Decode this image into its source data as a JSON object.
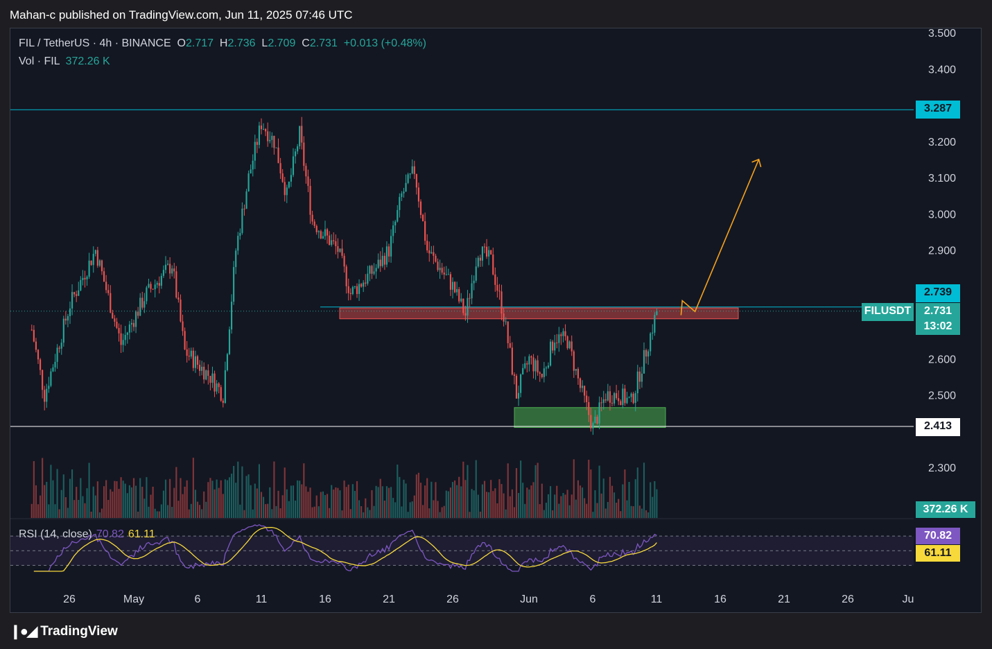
{
  "header": {
    "published": "Mahan-c published on TradingView.com, Jun 11, 2025 07:46 UTC"
  },
  "legend": {
    "symbol": "FIL / TetherUS · 4h · BINANCE",
    "o_label": "O",
    "o_value": "2.717",
    "h_label": "H",
    "h_value": "2.736",
    "l_label": "L",
    "l_value": "2.709",
    "c_label": "C",
    "c_value": "2.731",
    "change": "+0.013 (+0.48%)",
    "volume_label": "Vol · FIL",
    "volume_value": "372.26 K"
  },
  "rsi_legend": {
    "label": "RSI (14, close)",
    "rsi_value": "70.82",
    "ma_value": "61.11"
  },
  "price_tags": {
    "top_level": "3.287",
    "high_tag": "2.739",
    "symbol_tag": "FILUSDT",
    "price": "2.731",
    "countdown": "13:02",
    "low_level": "2.413",
    "volume": "372.26 K",
    "rsi": "70.82",
    "rsi_ma": "61.11"
  },
  "footer": {
    "brand": "TradingView"
  },
  "colors": {
    "up": "#26a69a",
    "down": "#ef5350",
    "accent": "#00bcd4",
    "rsi": "#7e57c2",
    "rsi_ma": "#f7d93b",
    "arrow": "#f7a21b"
  },
  "chart_data": {
    "type": "candlestick",
    "symbol": "FILUSDT",
    "timeframe": "4h",
    "ylim": [
      2.2,
      3.5
    ],
    "y_ticks": [
      "3.500",
      "3.400",
      "3.200",
      "3.100",
      "3.000",
      "2.900",
      "2.600",
      "2.500",
      "2.300"
    ],
    "x_ticks": [
      "26",
      "May",
      "6",
      "11",
      "16",
      "21",
      "26",
      "Jun",
      "6",
      "11",
      "16",
      "21",
      "26",
      "Ju"
    ],
    "levels": {
      "resistance_line": 3.287,
      "support_line": 2.413,
      "current_price": 2.731
    },
    "zones": [
      {
        "name": "resistance zone",
        "from": 2.71,
        "to": 2.74
      },
      {
        "name": "support zone",
        "from": 2.41,
        "to": 2.465
      }
    ],
    "price_path_approx": [
      [
        "Apr 23",
        2.68
      ],
      [
        "Apr 24",
        2.5
      ],
      [
        "Apr 26",
        2.75
      ],
      [
        "Apr 28",
        2.9
      ],
      [
        "Apr 30",
        2.64
      ],
      [
        "May 2",
        2.78
      ],
      [
        "May 4",
        2.86
      ],
      [
        "May 5",
        2.62
      ],
      [
        "May 7",
        2.55
      ],
      [
        "May 8",
        2.5
      ],
      [
        "May 9",
        2.9
      ],
      [
        "May 10",
        3.1
      ],
      [
        "May 11",
        3.25
      ],
      [
        "May 12",
        3.2
      ],
      [
        "May 13",
        3.05
      ],
      [
        "May 14",
        3.22
      ],
      [
        "May 15",
        2.98
      ],
      [
        "May 17",
        2.9
      ],
      [
        "May 18",
        2.78
      ],
      [
        "May 20",
        2.85
      ],
      [
        "May 21",
        2.9
      ],
      [
        "May 22",
        3.05
      ],
      [
        "May 23",
        3.12
      ],
      [
        "May 24",
        2.9
      ],
      [
        "May 26",
        2.8
      ],
      [
        "May 27",
        2.72
      ],
      [
        "May 28",
        2.9
      ],
      [
        "May 29",
        2.87
      ],
      [
        "May 30",
        2.72
      ],
      [
        "May 31",
        2.5
      ],
      [
        "Jun 1",
        2.6
      ],
      [
        "Jun 2",
        2.55
      ],
      [
        "Jun 3",
        2.66
      ],
      [
        "Jun 4",
        2.65
      ],
      [
        "Jun 5",
        2.52
      ],
      [
        "Jun 6",
        2.41
      ],
      [
        "Jun 7",
        2.5
      ],
      [
        "Jun 8",
        2.5
      ],
      [
        "Jun 9",
        2.48
      ],
      [
        "Jun 10",
        2.6
      ],
      [
        "Jun 11",
        2.731
      ]
    ],
    "projection": [
      [
        "Jun 13",
        2.76
      ],
      [
        "Jun 14",
        2.73
      ],
      [
        "Jun 19",
        3.15
      ]
    ],
    "volume": {
      "last": "372.26 K"
    },
    "rsi": {
      "period": 14,
      "value": 70.82,
      "ma": 61.11,
      "levels": [
        70,
        50,
        30
      ]
    }
  }
}
